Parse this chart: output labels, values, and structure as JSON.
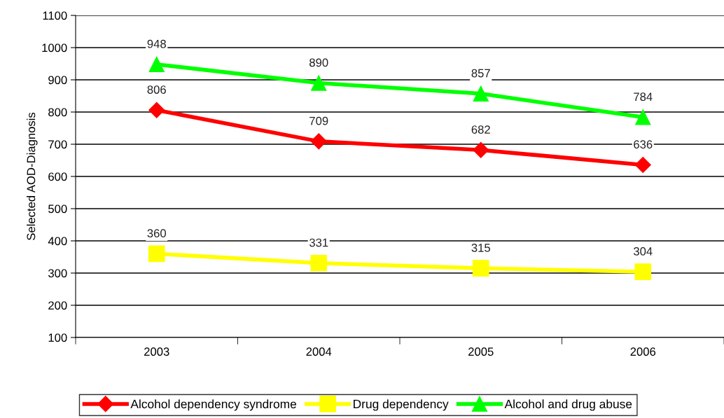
{
  "chart_data": {
    "type": "line",
    "ylabel": "Selected AOD-Diagnosis",
    "categories": [
      "2003",
      "2004",
      "2005",
      "2006"
    ],
    "series": [
      {
        "name": "Alcohol dependency syndrome",
        "color": "#ff0000",
        "marker": "diamond",
        "values": [
          806,
          709,
          682,
          636
        ]
      },
      {
        "name": "Drug dependency",
        "color": "#ffff00",
        "marker": "square",
        "values": [
          360,
          331,
          315,
          304
        ]
      },
      {
        "name": "Alcohol and drug abuse",
        "color": "#00ff00",
        "marker": "triangle",
        "values": [
          948,
          890,
          857,
          784
        ]
      }
    ],
    "ylim": [
      100,
      1100
    ],
    "yticks": [
      100,
      200,
      300,
      400,
      500,
      600,
      700,
      800,
      900,
      1000,
      1100
    ],
    "grid": "y",
    "legend": "bottom",
    "data_labels": true
  }
}
